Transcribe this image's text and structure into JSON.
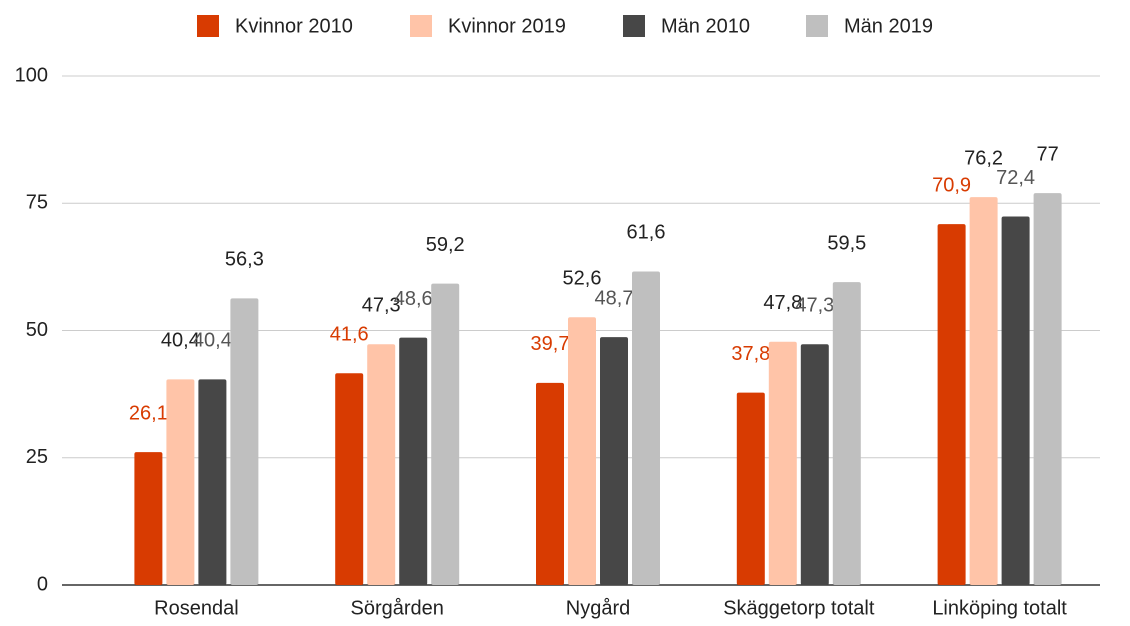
{
  "chart_data": {
    "type": "bar",
    "categories": [
      "Rosendal",
      "Sörgården",
      "Nygård",
      "Skäggetorp totalt",
      "Linköping totalt"
    ],
    "series": [
      {
        "name": "Kvinnor 2010",
        "color": "#d83b01",
        "label_color": "#d83b01",
        "values": [
          26.1,
          41.6,
          39.7,
          37.8,
          70.9
        ],
        "value_labels": [
          "26,1",
          "41,6",
          "39,7",
          "37,8",
          "70,9"
        ]
      },
      {
        "name": "Kvinnor 2019",
        "color": "#ffc4a8",
        "label_color": "#222222",
        "values": [
          40.4,
          47.3,
          52.6,
          47.8,
          76.2
        ],
        "value_labels": [
          "40,4",
          "47,3",
          "52,6",
          "47,8",
          "76,2"
        ]
      },
      {
        "name": "Män 2010",
        "color": "#474747",
        "label_color": "#555555",
        "values": [
          40.4,
          48.6,
          48.7,
          47.3,
          72.4
        ],
        "value_labels": [
          "40,4",
          "48,6",
          "48,7",
          "47,3",
          "72,4"
        ]
      },
      {
        "name": "Män 2019",
        "color": "#bfbfbf",
        "label_color": "#222222",
        "values": [
          56.3,
          59.2,
          61.6,
          59.5,
          77
        ],
        "value_labels": [
          "56,3",
          "59,2",
          "61,6",
          "59,5",
          "77"
        ]
      }
    ],
    "ylim": [
      0,
      100
    ],
    "yticks": [
      0,
      25,
      50,
      75,
      100
    ],
    "grid": true,
    "legend": "top"
  }
}
